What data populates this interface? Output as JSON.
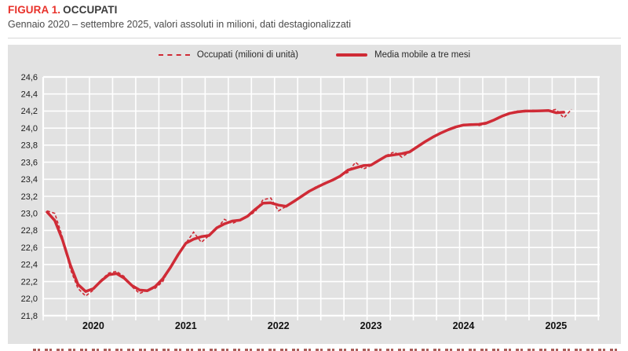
{
  "header": {
    "figure_label": "FIGURA 1.",
    "figure_title": "OCCUPATI",
    "subtitle": "Gennaio 2020 – settembre 2025, valori assoluti in milioni, dati destagionalizzati"
  },
  "legend": {
    "series1": "Occupati (milioni di unità)",
    "series2": "Media mobile a tre mesi"
  },
  "colors": {
    "line_red": "#cf2b36",
    "title_red": "#e8312a",
    "panel_background": "#e2e2e2",
    "gridline": "#ffffff",
    "tick_text": "#1c1c1c"
  },
  "chart_data": {
    "type": "line",
    "title": "Occupati",
    "x_frequency": "monthly",
    "x_start": "2020-01",
    "x_end": "2025-09",
    "x_tick_labels": [
      "2020",
      "2021",
      "2022",
      "2023",
      "2024",
      "2025"
    ],
    "y_tick_labels": [
      "24,6",
      "24,4",
      "24,2",
      "24,0",
      "23,8",
      "23,6",
      "23,4",
      "23,2",
      "23,0",
      "22,8",
      "22,6",
      "22,4",
      "22,2",
      "22,0",
      "21,8"
    ],
    "ylim": [
      21.8,
      24.6
    ],
    "y_step": 0.2,
    "grid": true,
    "legend_position": "top-center",
    "series": [
      {
        "name": "Occupati (milioni di unità)",
        "style": "dashed",
        "values": [
          23.03,
          23.0,
          22.72,
          22.35,
          22.12,
          22.03,
          22.1,
          22.22,
          22.3,
          22.32,
          22.26,
          22.14,
          22.06,
          22.1,
          22.12,
          22.2,
          22.38,
          22.52,
          22.65,
          22.78,
          22.66,
          22.74,
          22.82,
          22.93,
          22.88,
          22.92,
          22.96,
          23.02,
          23.16,
          23.18,
          23.03,
          23.08,
          23.14,
          23.2,
          23.26,
          23.32,
          23.34,
          23.39,
          23.44,
          23.48,
          23.6,
          23.52,
          23.56,
          23.62,
          23.68,
          23.72,
          23.66,
          23.72,
          23.78,
          23.84,
          23.9,
          23.94,
          23.98,
          24.02,
          24.04,
          24.05,
          24.03,
          24.05,
          24.1,
          24.14,
          24.18,
          24.2,
          24.19,
          24.21,
          24.2,
          24.2,
          24.22,
          24.12,
          24.22
        ]
      },
      {
        "name": "Media mobile a tre mesi",
        "style": "solid",
        "derived": "centered 3-month moving average of series 0 (ends one month before last observation)"
      }
    ]
  }
}
